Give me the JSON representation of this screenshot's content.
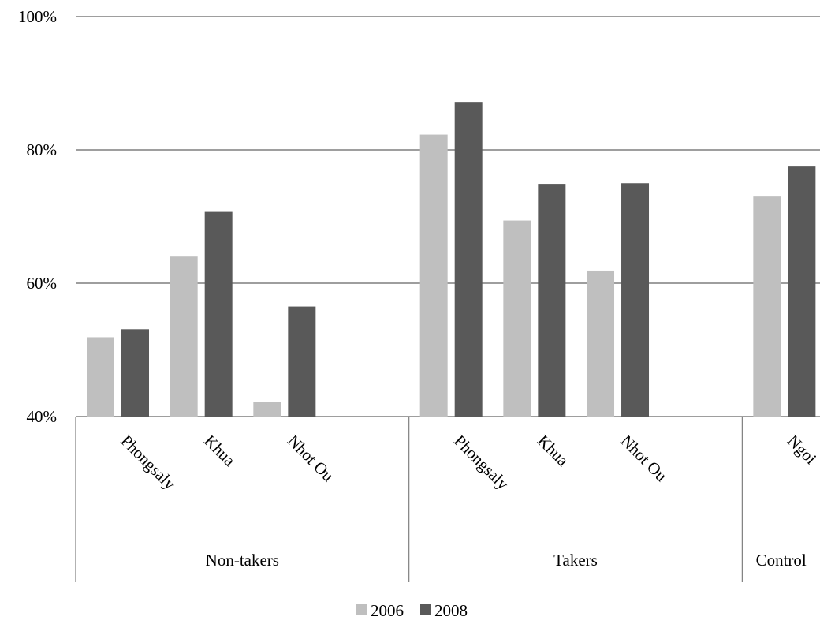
{
  "chart_data": {
    "type": "bar",
    "title": "",
    "xlabel": "",
    "ylabel": "",
    "ylim": [
      40,
      100
    ],
    "yticks": [
      "40%",
      "60%",
      "80%",
      "100%"
    ],
    "ytick_values": [
      40,
      60,
      80,
      100
    ],
    "grid": true,
    "legend_position": "bottom",
    "groups": [
      {
        "name": "Non-takers",
        "categories": [
          "Phongsaly",
          "Khua",
          "Nhot Ou"
        ]
      },
      {
        "name": "Takers",
        "categories": [
          "Phongsaly",
          "Khua",
          "Nhot Ou"
        ]
      },
      {
        "name": "Control",
        "categories": [
          "Ngoi"
        ]
      }
    ],
    "categories": [
      "Phongsaly",
      "Khua",
      "Nhot Ou",
      "Phongsaly",
      "Khua",
      "Nhot Ou",
      "Ngoi"
    ],
    "series": [
      {
        "name": "2006",
        "color": "#bfbfbf",
        "values": [
          51.9,
          64.0,
          42.2,
          82.3,
          69.4,
          61.9,
          73.0
        ]
      },
      {
        "name": "2008",
        "color": "#595959",
        "values": [
          53.1,
          70.7,
          56.5,
          87.2,
          74.9,
          75.0,
          77.5
        ]
      }
    ]
  }
}
